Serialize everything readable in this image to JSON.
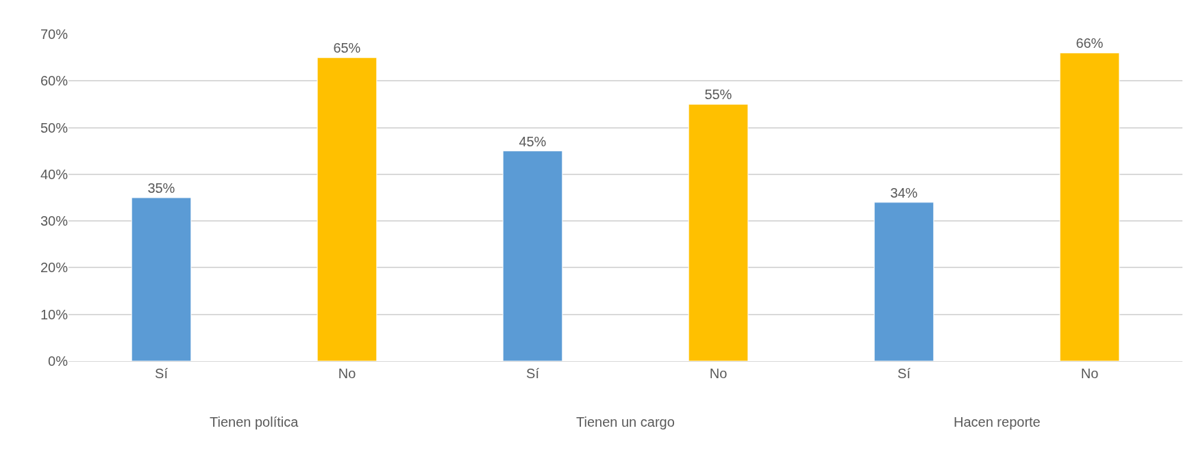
{
  "chart_data": {
    "type": "bar",
    "categories": [
      "Sí",
      "No",
      "Sí",
      "No",
      "Sí",
      "No"
    ],
    "values": [
      35,
      65,
      45,
      55,
      34,
      66
    ],
    "colors": [
      "#5b9bd5",
      "#ffc000",
      "#5b9bd5",
      "#ffc000",
      "#5b9bd5",
      "#ffc000"
    ],
    "value_labels": [
      "35%",
      "65%",
      "45%",
      "55%",
      "34%",
      "66%"
    ],
    "ylim": [
      0,
      70
    ],
    "yticks": [
      {
        "value": 0,
        "label": "0%"
      },
      {
        "value": 10,
        "label": "10%"
      },
      {
        "value": 20,
        "label": "20%"
      },
      {
        "value": 30,
        "label": "30%"
      },
      {
        "value": 40,
        "label": "40%"
      },
      {
        "value": 50,
        "label": "50%"
      },
      {
        "value": 60,
        "label": "60%"
      },
      {
        "value": 70,
        "label": "70%"
      }
    ],
    "annotations": [
      "Tienen política",
      "Tienen un cargo",
      "Hacen reporte"
    ],
    "grid": "y"
  }
}
